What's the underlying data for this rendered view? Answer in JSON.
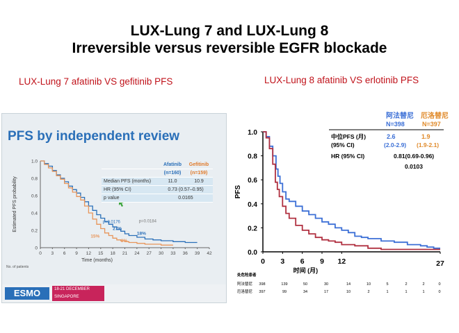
{
  "title_line1": "LUX-Lung 7 and LUX-Lung 8",
  "title_line2": "Irreversible versus reversible EGFR blockade",
  "left_heading": "LUX-Lung 7 afatinib VS gefitinib PFS",
  "right_heading": "LUX-Lung 8 afatinib VS erlotinib PFS",
  "colors": {
    "afatinib": "#3b6fd6",
    "comparator": "#b03040",
    "slide_afatinib": "#2a6fb8",
    "slide_gefitinib": "#e8955a",
    "heading_red": "#c0121a"
  },
  "slide": {
    "title": "PFS by independent review",
    "table": {
      "col1": "Afatinib\n(n=160)",
      "col2": "Gefitinib\n(n=159)",
      "col1_a": "Afatinib",
      "col1_b": "(n=160)",
      "col2_a": "Gefitinib",
      "col2_b": "(n=159)",
      "rows": [
        {
          "label": "Median PFS (months)",
          "v1": "11.0",
          "v2": "10.9"
        },
        {
          "label": "HR (95% CI)",
          "v1": "0.73 (0.57–0.95)",
          "v2": ""
        },
        {
          "label": "p value",
          "v1": "0.0165",
          "v2": ""
        }
      ]
    },
    "banner_logo": "ESMO",
    "banner_event": "18-21 DECEMBER SINGAPORE"
  },
  "chart_data": [
    {
      "type": "line",
      "title": "PFS by independent review",
      "xlabel": "Time (months)",
      "ylabel": "Estimated PFS probability",
      "xlim": [
        0,
        42
      ],
      "ylim": [
        0,
        1.0
      ],
      "x_ticks": [
        "0",
        "3",
        "6",
        "9",
        "12",
        "15",
        "18",
        "21",
        "24",
        "27",
        "30",
        "33",
        "36",
        "39",
        "42"
      ],
      "y_ticks": [
        "0",
        "0.2",
        "0.4",
        "0.6",
        "0.8",
        "1.0"
      ],
      "annotations": [
        "p=0.0176",
        "p=0.0184",
        "27%",
        "18%",
        "15%",
        "8%"
      ],
      "at_risk_label": "No. of patients",
      "series": [
        {
          "name": "Afatinib",
          "x": [
            0,
            1,
            2,
            3,
            4,
            5,
            6,
            7,
            8,
            9,
            10,
            11,
            12,
            13,
            14,
            15,
            16,
            17,
            18,
            19,
            20,
            21,
            22,
            24,
            26,
            28,
            30,
            33,
            36,
            39
          ],
          "y": [
            1.0,
            0.97,
            0.94,
            0.89,
            0.84,
            0.8,
            0.76,
            0.71,
            0.67,
            0.63,
            0.58,
            0.53,
            0.48,
            0.43,
            0.38,
            0.34,
            0.3,
            0.27,
            0.24,
            0.21,
            0.19,
            0.16,
            0.14,
            0.12,
            0.1,
            0.09,
            0.08,
            0.07,
            0.06,
            0.06
          ]
        },
        {
          "name": "Gefitinib",
          "x": [
            0,
            1,
            2,
            3,
            4,
            5,
            6,
            7,
            8,
            9,
            10,
            11,
            12,
            13,
            14,
            15,
            16,
            17,
            18,
            19,
            20,
            21,
            22,
            24,
            26,
            28,
            30,
            33
          ],
          "y": [
            1.0,
            0.96,
            0.92,
            0.88,
            0.83,
            0.79,
            0.74,
            0.69,
            0.64,
            0.59,
            0.55,
            0.48,
            0.4,
            0.33,
            0.27,
            0.22,
            0.17,
            0.14,
            0.11,
            0.09,
            0.08,
            0.07,
            0.06,
            0.05,
            0.04,
            0.04,
            0.03,
            0.03
          ]
        }
      ]
    },
    {
      "type": "line",
      "xlabel": "时间 (月)",
      "ylabel": "PFS",
      "xlim": [
        0,
        27
      ],
      "ylim": [
        0,
        1.0
      ],
      "x_ticks": [
        "0",
        "3",
        "6",
        "9",
        "12",
        "27"
      ],
      "y_ticks": [
        "0.0",
        "0.2",
        "0.4",
        "0.6",
        "0.8",
        "1.0"
      ],
      "legend": {
        "afatinib_name": "阿法替尼",
        "afatinib_n": "N=398",
        "erlotinib_name": "厄洛替尼",
        "erlotinib_n": "N=397"
      },
      "stats": {
        "median_label": "中位PFS (月)",
        "ci_label": "(95% CI)",
        "afatinib_median": "2.6",
        "afatinib_ci": "(2.0-2.9)",
        "erlotinib_median": "1.9",
        "erlotinib_ci": "(1.9-2.1)",
        "hr_label": "HR (95% CI)",
        "hr_value": "0.81(0.69-0.96)",
        "p_value": "0.0103"
      },
      "at_risk": {
        "header": "处危险患者",
        "afatinib_label": "阿法替尼",
        "afatinib": [
          "398",
          "139",
          "50",
          "30",
          "14",
          "10",
          "5",
          "2",
          "2",
          "0"
        ],
        "erlotinib_label": "厄洛替尼",
        "erlotinib": [
          "397",
          "99",
          "34",
          "17",
          "10",
          "2",
          "1",
          "1",
          "1",
          "0"
        ]
      },
      "series": [
        {
          "name": "阿法替尼",
          "x": [
            0,
            0.5,
            1,
            1.5,
            2,
            2.3,
            2.6,
            3,
            3.5,
            4,
            5,
            6,
            7,
            8,
            9,
            10,
            11,
            12,
            13,
            14,
            15,
            16,
            18,
            20,
            22,
            24,
            25,
            26,
            27
          ],
          "y": [
            1.0,
            0.96,
            0.88,
            0.8,
            0.69,
            0.63,
            0.57,
            0.5,
            0.44,
            0.42,
            0.38,
            0.34,
            0.31,
            0.28,
            0.25,
            0.23,
            0.2,
            0.18,
            0.16,
            0.13,
            0.12,
            0.11,
            0.09,
            0.08,
            0.06,
            0.05,
            0.04,
            0.03,
            0.03
          ]
        },
        {
          "name": "厄洛替尼",
          "x": [
            0,
            0.5,
            1,
            1.5,
            1.9,
            2.2,
            2.5,
            3,
            3.5,
            4,
            5,
            6,
            7,
            8,
            9,
            10,
            11,
            12,
            14,
            16,
            18,
            20,
            22,
            24,
            27
          ],
          "y": [
            1.0,
            0.95,
            0.86,
            0.73,
            0.58,
            0.52,
            0.46,
            0.38,
            0.32,
            0.28,
            0.22,
            0.18,
            0.15,
            0.12,
            0.1,
            0.09,
            0.08,
            0.06,
            0.05,
            0.03,
            0.02,
            0.02,
            0.02,
            0.02,
            0.02
          ]
        }
      ]
    }
  ]
}
